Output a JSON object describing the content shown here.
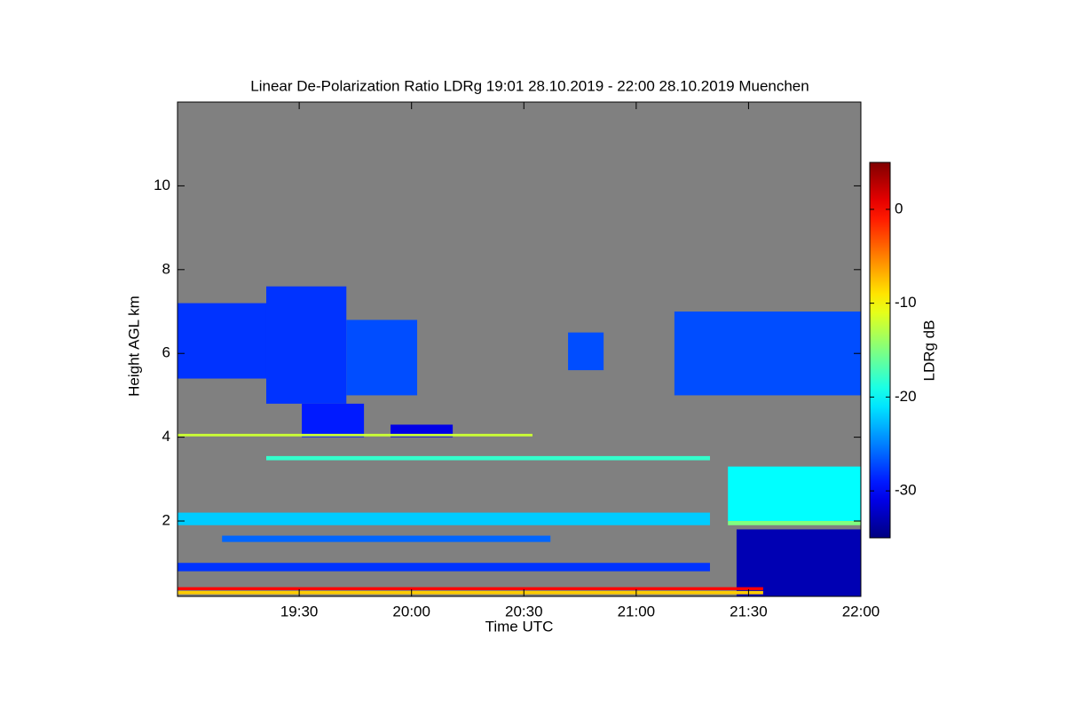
{
  "chart_data": {
    "type": "heatmap",
    "title": "Linear De-Polarization Ratio LDRg   19:01 28.10.2019 - 22:00 28.10.2019 Muenchen",
    "x_label": "Time UTC",
    "y_label": "Height AGL km",
    "colorbar_label": "LDRg dB",
    "colormap": "jet",
    "xlim": [
      -2.5,
      180
    ],
    "xticks": [
      {
        "value": 30,
        "label": "19:30"
      },
      {
        "value": 60,
        "label": "20:00"
      },
      {
        "value": 90,
        "label": "20:30"
      },
      {
        "value": 120,
        "label": "21:00"
      },
      {
        "value": 150,
        "label": "21:30"
      },
      {
        "value": 180,
        "label": "22:00"
      }
    ],
    "ylim": [
      0.2,
      12
    ],
    "yticks": [
      2,
      4,
      6,
      8,
      10
    ],
    "clim": [
      -35,
      5
    ],
    "cticks": [
      0,
      -10,
      -20,
      -30
    ],
    "patches": [
      {
        "x": [
          -2.5,
          21.2
        ],
        "y": [
          5.4,
          7.2
        ],
        "value": -28
      },
      {
        "x": [
          21.2,
          42.6
        ],
        "y": [
          4.8,
          7.6
        ],
        "value": -28
      },
      {
        "x": [
          42.6,
          61.5
        ],
        "y": [
          5.0,
          6.8
        ],
        "value": -27
      },
      {
        "x": [
          30.7,
          47.3
        ],
        "y": [
          4.0,
          4.8
        ],
        "value": -29
      },
      {
        "x": [
          54.4,
          71.0
        ],
        "y": [
          4.0,
          4.3
        ],
        "value": -31
      },
      {
        "x": [
          101.8,
          111.3
        ],
        "y": [
          5.6,
          6.5
        ],
        "value": -27
      },
      {
        "x": [
          130.2,
          180
        ],
        "y": [
          5.0,
          7.0
        ],
        "value": -27
      },
      {
        "x": [
          146.8,
          180
        ],
        "y": [
          0.2,
          1.8
        ],
        "value": -33
      },
      {
        "x": [
          144.5,
          180
        ],
        "y": [
          2.0,
          3.3
        ],
        "value": -20
      },
      {
        "x": [
          144.5,
          180
        ],
        "y": [
          1.9,
          2.0
        ],
        "value": -15
      },
      {
        "x": [
          -2.5,
          139.7
        ],
        "y": [
          1.9,
          2.2
        ],
        "value": -22
      },
      {
        "x": [
          -2.5,
          139.7
        ],
        "y": [
          0.8,
          1.0
        ],
        "value": -28
      },
      {
        "x": [
          9.4,
          97.1
        ],
        "y": [
          1.5,
          1.65
        ],
        "value": -26
      },
      {
        "x": [
          21.2,
          139.7
        ],
        "y": [
          3.45,
          3.55
        ],
        "value": -18
      },
      {
        "x": [
          -2.5,
          92.3
        ],
        "y": [
          4.02,
          4.08
        ],
        "value": -12
      },
      {
        "x": [
          -2.5,
          153.9
        ],
        "y": [
          0.25,
          0.33
        ],
        "value": -8
      },
      {
        "x": [
          -2.5,
          153.9
        ],
        "y": [
          0.35,
          0.42
        ],
        "value": 0
      }
    ]
  }
}
